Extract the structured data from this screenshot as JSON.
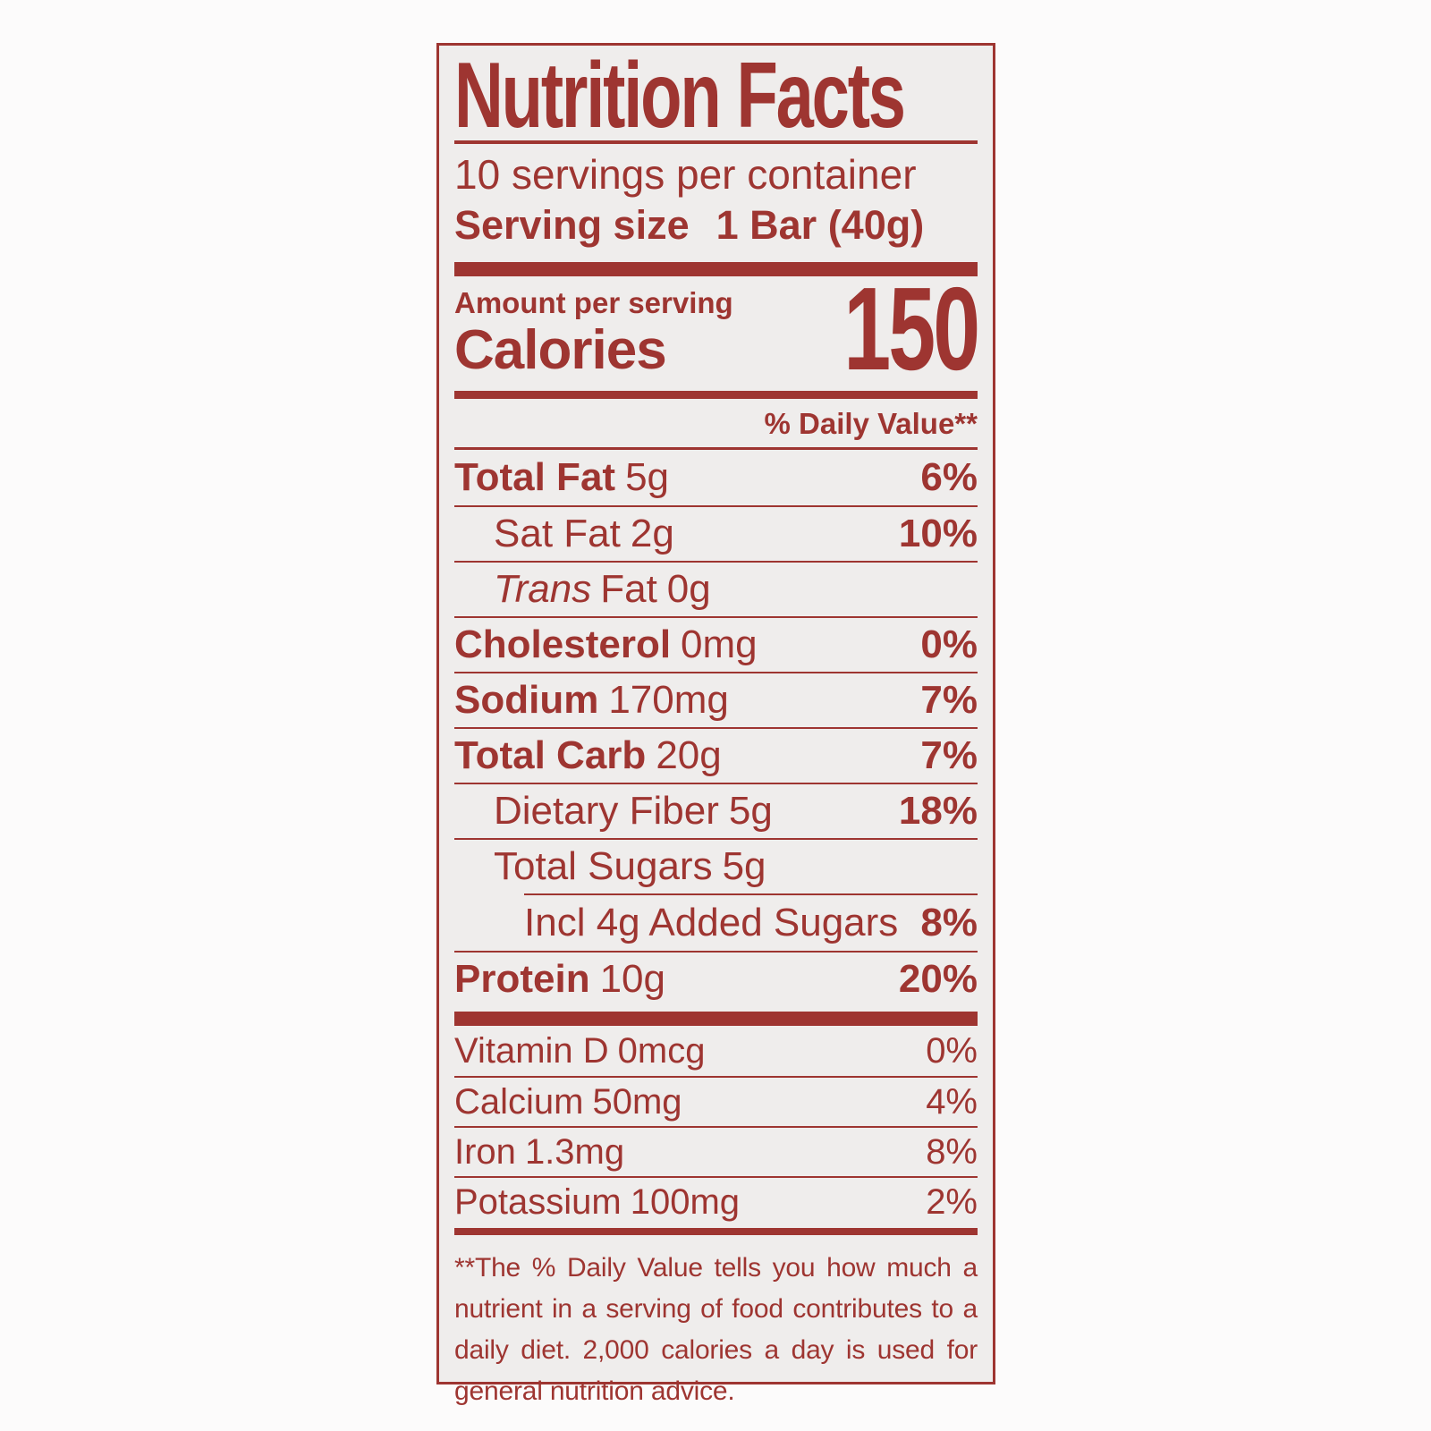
{
  "colors": {
    "label_red": "#9e3531",
    "label_bg": "#efedec",
    "page_bg": "#fcfbfb"
  },
  "label": {
    "title": "Nutrition Facts",
    "servings_per_container": "10 servings per container",
    "serving_size": {
      "label": "Serving size",
      "value": "1 Bar (40g)"
    },
    "calories": {
      "header": "Amount per serving",
      "label": "Calories",
      "value": "150"
    },
    "daily_value_header": "% Daily Value**",
    "nutrients": [
      {
        "name": "Total Fat",
        "amount": "5g",
        "dv": "6%"
      },
      {
        "name": "Sat Fat",
        "amount": "2g",
        "dv": "10%"
      },
      {
        "name_italic": "Trans",
        "name": "Fat",
        "amount": "0g",
        "dv": ""
      },
      {
        "name": "Cholesterol",
        "amount": "0mg",
        "dv": "0%"
      },
      {
        "name": "Sodium",
        "amount": "170mg",
        "dv": "7%"
      },
      {
        "name": "Total Carb",
        "amount": "20g",
        "dv": "7%"
      },
      {
        "name": "Dietary Fiber",
        "amount": "5g",
        "dv": "18%"
      },
      {
        "name": "Total Sugars",
        "amount": "5g",
        "dv": ""
      },
      {
        "name": "Incl 4g Added Sugars",
        "amount": "",
        "dv": "8%"
      },
      {
        "name": "Protein",
        "amount": "10g",
        "dv": "20%"
      }
    ],
    "vitamins": [
      {
        "name": "Vitamin D",
        "amount": "0mcg",
        "dv": "0%"
      },
      {
        "name": "Calcium",
        "amount": "50mg",
        "dv": "4%"
      },
      {
        "name": "Iron",
        "amount": "1.3mg",
        "dv": "8%"
      },
      {
        "name": "Potassium",
        "amount": "100mg",
        "dv": "2%"
      }
    ],
    "footnote": "**The % Daily Value tells you how much a nutrient in a serving of food contributes to a daily diet. 2,000 calories a day is used for general nutrition advice."
  }
}
